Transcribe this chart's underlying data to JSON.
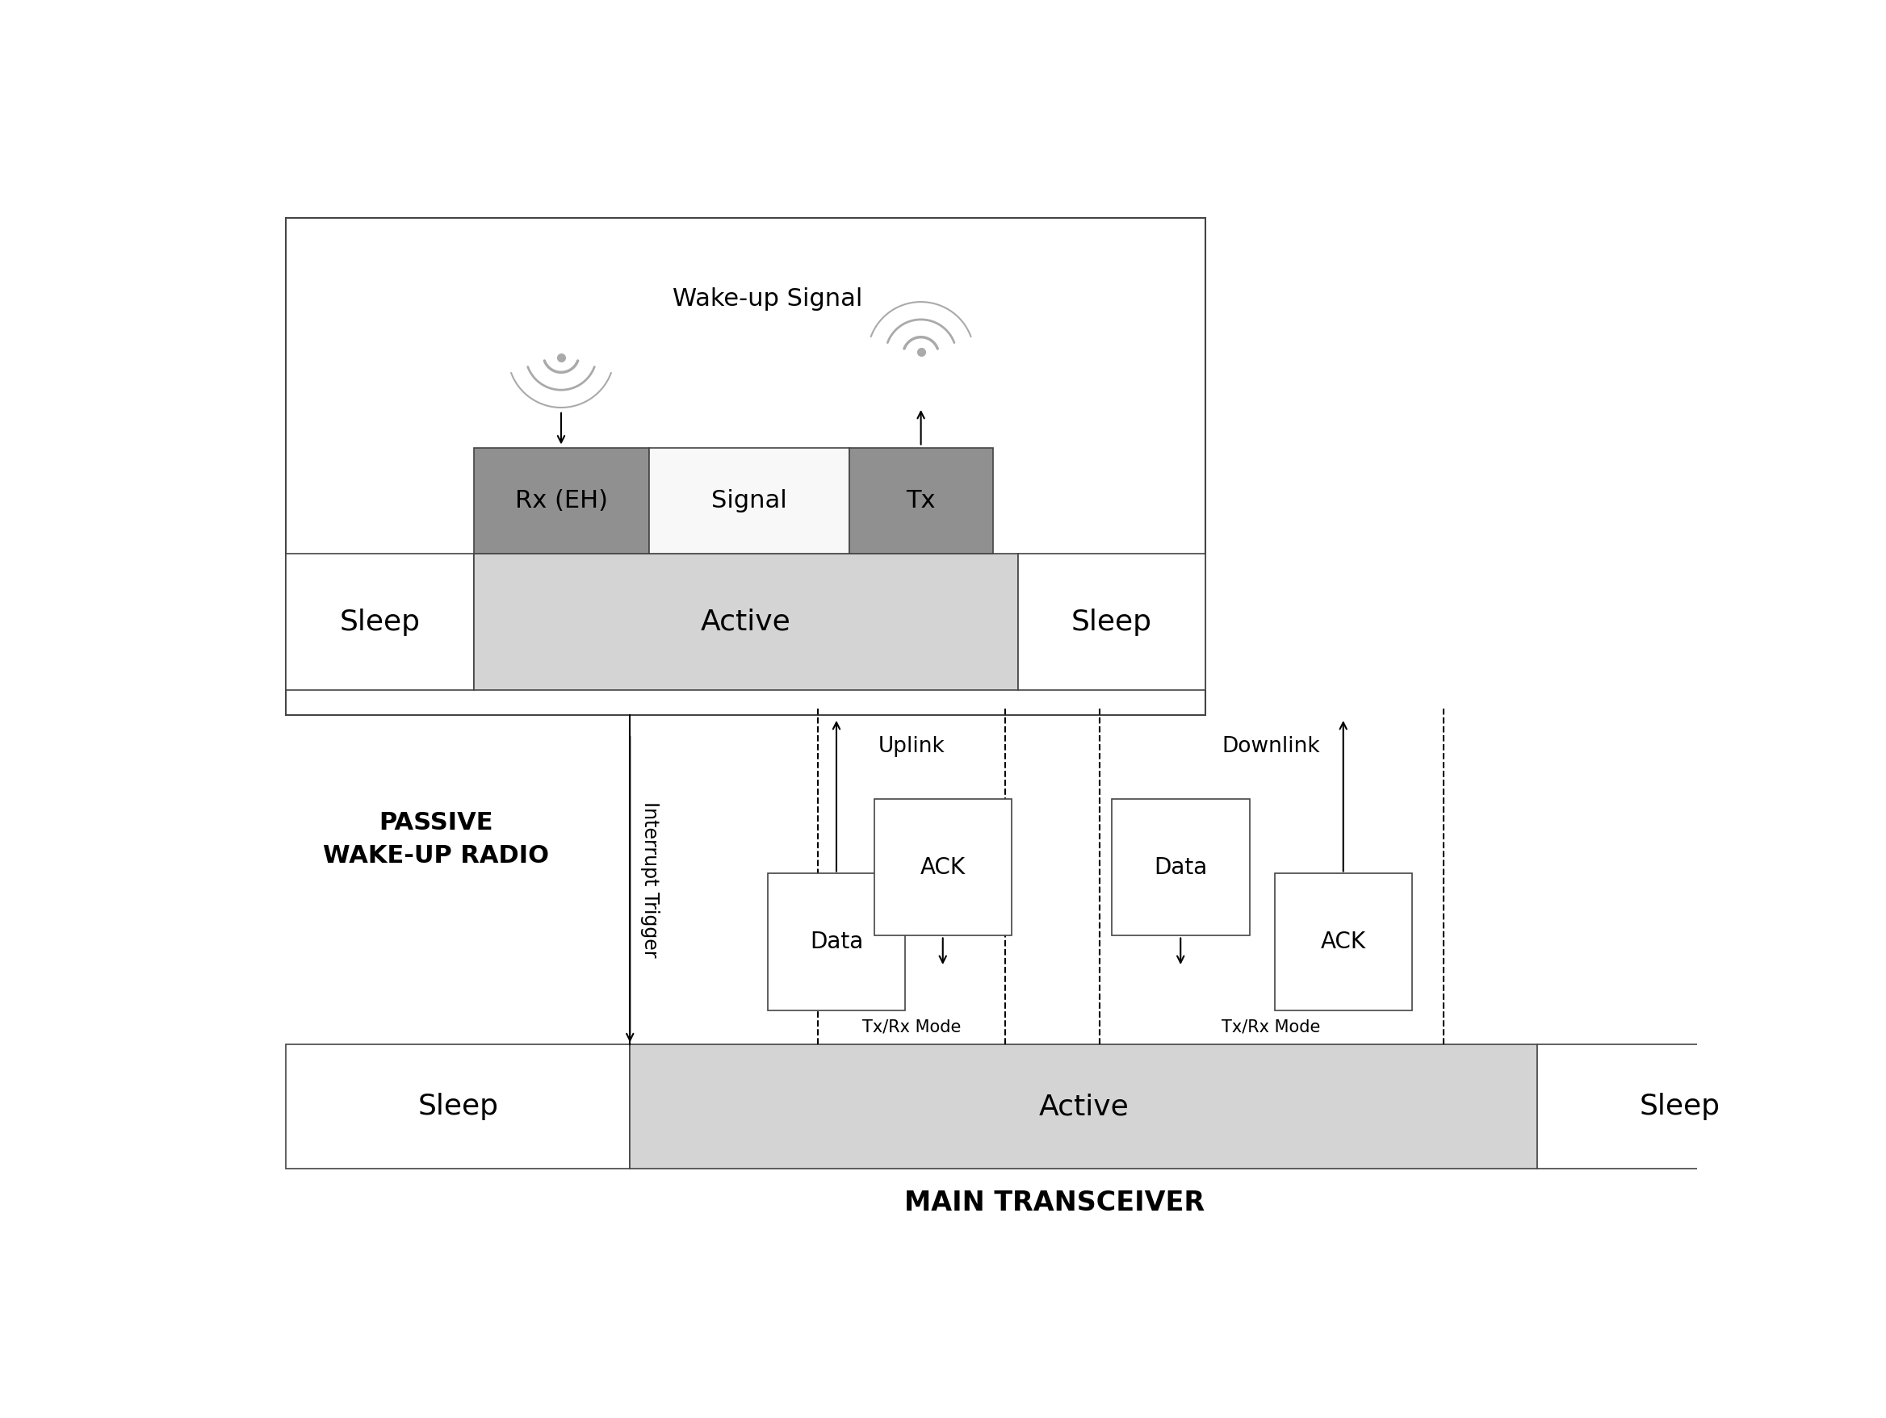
{
  "title_bottom": "MAIN TRANSCEIVER",
  "title_left": "PASSIVE\nWAKE-UP RADIO",
  "wakeup_signal_label": "Wake-up Signal",
  "interrupt_trigger_label": "Interrupt Trigger",
  "uplink_label": "Uplink",
  "downlink_label": "Downlink",
  "txrx_label": "Tx/Rx Mode",
  "sleep_color": "#ffffff",
  "active_color": "#d4d4d4",
  "dark_block_color": "#909090",
  "signal_block_color": "#f8f8f8",
  "box_border_color": "#444444",
  "text_color": "#000000",
  "dashed_color": "#000000",
  "arrow_color": "#000000",
  "bg_color": "#ffffff",
  "wifi_color": "#aaaaaa"
}
